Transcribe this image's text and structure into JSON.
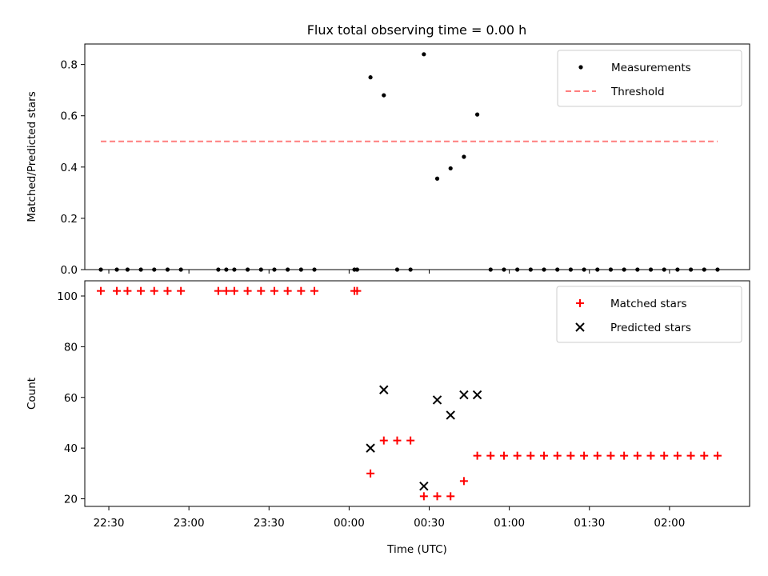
{
  "chart_data": [
    {
      "type": "scatter",
      "title": "Flux total observing time = 0.00 h",
      "xlabel": "",
      "ylabel": "Matched/Predicted stars",
      "ylim": [
        0,
        0.88
      ],
      "yticks": [
        "0.0",
        "0.2",
        "0.4",
        "0.6",
        "0.8"
      ],
      "ytick_values": [
        0,
        0.2,
        0.4,
        0.6,
        0.8
      ],
      "xlim": [
        "22:21",
        "02:30"
      ],
      "legend_position": "top-right",
      "series": [
        {
          "name": "Measurements",
          "marker": "dot",
          "color": "#000000",
          "x": [
            "22:27",
            "22:33",
            "22:37",
            "22:42",
            "22:47",
            "22:52",
            "22:57",
            "23:11",
            "23:14",
            "23:17",
            "23:22",
            "23:27",
            "23:32",
            "23:37",
            "23:42",
            "23:47",
            "00:02",
            "00:03",
            "00:08",
            "00:13",
            "00:18",
            "00:23",
            "00:28",
            "00:33",
            "00:38",
            "00:43",
            "00:48",
            "00:53",
            "00:58",
            "01:03",
            "01:08",
            "01:13",
            "01:18",
            "01:23",
            "01:28",
            "01:33",
            "01:38",
            "01:43",
            "01:48",
            "01:53",
            "01:58",
            "02:03",
            "02:08",
            "02:13",
            "02:18"
          ],
          "y": [
            0,
            0,
            0,
            0,
            0,
            0,
            0,
            0,
            0,
            0,
            0,
            0,
            0,
            0,
            0,
            0,
            0,
            0,
            0.75,
            0.68,
            0,
            0,
            0.84,
            0.355,
            0.395,
            0.44,
            0.605,
            0,
            0,
            0,
            0,
            0,
            0,
            0,
            0,
            0,
            0,
            0,
            0,
            0,
            0,
            0,
            0,
            0,
            0
          ]
        },
        {
          "name": "Threshold",
          "line": "dashed",
          "color": "#ff7f7f",
          "x": [
            "22:27",
            "02:18"
          ],
          "y": [
            0.5,
            0.5
          ]
        }
      ]
    },
    {
      "type": "scatter",
      "title": "",
      "xlabel": "Time (UTC)",
      "ylabel": "Count",
      "ylim": [
        17,
        106
      ],
      "yticks": [
        "20",
        "40",
        "60",
        "80",
        "100"
      ],
      "ytick_values": [
        20,
        40,
        60,
        80,
        100
      ],
      "xlim": [
        "22:21",
        "02:30"
      ],
      "xticks": [
        "22:30",
        "23:00",
        "23:30",
        "00:00",
        "00:30",
        "01:00",
        "01:30",
        "02:00"
      ],
      "legend_position": "top-right",
      "series": [
        {
          "name": "Matched stars",
          "marker": "plus",
          "color": "#ff0000",
          "x": [
            "22:27",
            "22:33",
            "22:37",
            "22:42",
            "22:47",
            "22:52",
            "22:57",
            "23:11",
            "23:14",
            "23:17",
            "23:22",
            "23:27",
            "23:32",
            "23:37",
            "23:42",
            "23:47",
            "00:02",
            "00:03",
            "00:08",
            "00:13",
            "00:18",
            "00:23",
            "00:28",
            "00:33",
            "00:38",
            "00:43",
            "00:48",
            "00:53",
            "00:58",
            "01:03",
            "01:08",
            "01:13",
            "01:18",
            "01:23",
            "01:28",
            "01:33",
            "01:38",
            "01:43",
            "01:48",
            "01:53",
            "01:58",
            "02:03",
            "02:08",
            "02:13",
            "02:18"
          ],
          "y": [
            102,
            102,
            102,
            102,
            102,
            102,
            102,
            102,
            102,
            102,
            102,
            102,
            102,
            102,
            102,
            102,
            102,
            102,
            30,
            43,
            43,
            43,
            21,
            21,
            21,
            27,
            37,
            37,
            37,
            37,
            37,
            37,
            37,
            37,
            37,
            37,
            37,
            37,
            37,
            37,
            37,
            37,
            37,
            37,
            37
          ]
        },
        {
          "name": "Predicted stars",
          "marker": "x",
          "color": "#000000",
          "x": [
            "00:08",
            "00:13",
            "00:28",
            "00:33",
            "00:38",
            "00:43",
            "00:48"
          ],
          "y": [
            40,
            63,
            25,
            59,
            53,
            61,
            61
          ]
        }
      ]
    }
  ]
}
